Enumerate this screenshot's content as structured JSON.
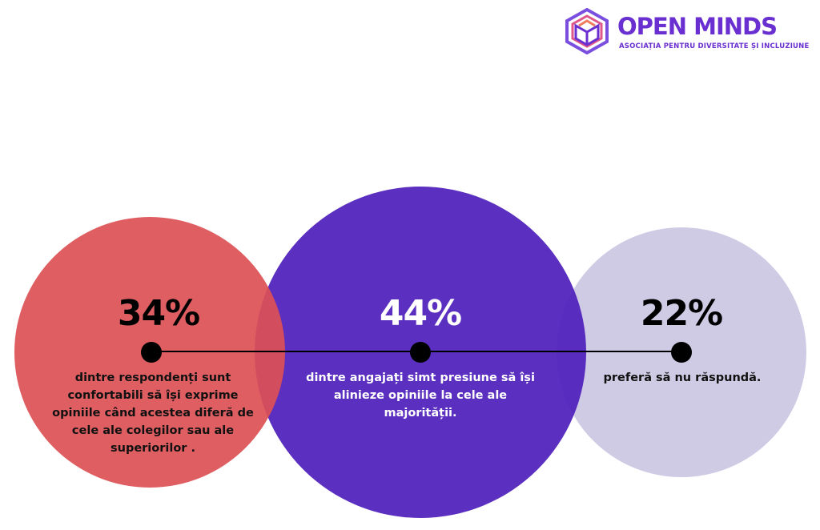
{
  "logo": {
    "name": "OPEN MINDS",
    "tagline": "ASOCIAȚIA PENTRU DIVERSITATE ȘI INCLUZIUNE",
    "color": "#6a2fd0",
    "icon": "hexagon-book-icon"
  },
  "colors": {
    "red": "#dc5055",
    "purple": "#5122bb",
    "lavender": "#cfcbe4",
    "line": "#000000"
  },
  "chart_data": {
    "type": "pie",
    "title": "",
    "unit": "%",
    "items": [
      {
        "value": 34,
        "label": "34%",
        "description": "dintre respondenți sunt confortabili să își exprime opiniile când acestea diferă de cele ale colegilor sau ale superiorilor ."
      },
      {
        "value": 44,
        "label": "44%",
        "description": "dintre angajați simt presiune să își alinieze opiniile la cele ale majorității."
      },
      {
        "value": 22,
        "label": "22%",
        "description": "preferă să nu răspundă."
      }
    ]
  }
}
